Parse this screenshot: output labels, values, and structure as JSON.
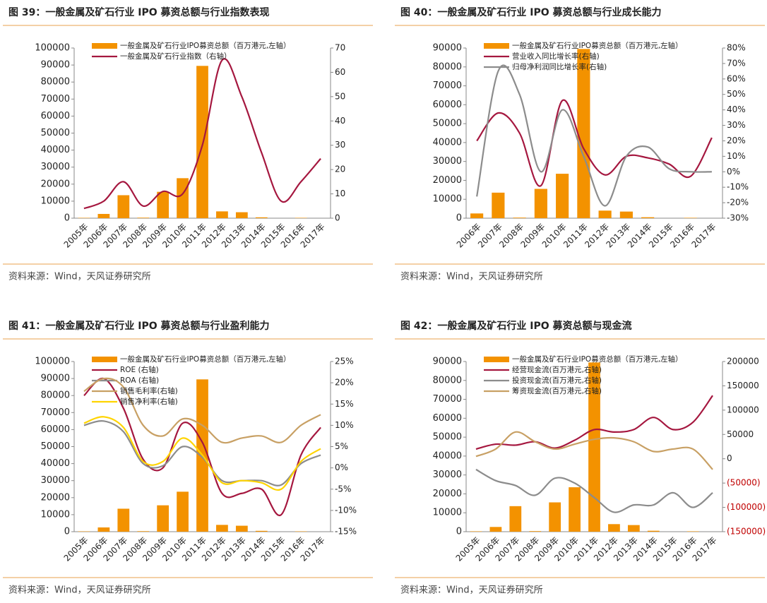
{
  "chart_data": [
    {
      "type": "combo",
      "title": "图 39：一般金属及矿石行业 IPO 募资总额与行业指数表现",
      "source": "资料来源：Wind，天风证券研究所",
      "categories": [
        "2005年",
        "2006年",
        "2007年",
        "2008年",
        "2009年",
        "2010年",
        "2011年",
        "2012年",
        "2013年",
        "2014年",
        "2015年",
        "2016年",
        "2017年"
      ],
      "series": [
        {
          "name": "一般金属及矿石行业IPO募资总额（百万港元,左轴）",
          "color": "#f39200",
          "values": [
            200,
            2500,
            13500,
            300,
            15500,
            23500,
            89500,
            4000,
            3500,
            500,
            0,
            200,
            0
          ]
        },
        {
          "name": "一般金属及矿石行业指数（右轴）",
          "color": "#a5173f",
          "axis": "y2",
          "values": [
            4,
            7,
            15,
            5,
            11,
            10,
            30,
            65,
            50,
            27,
            7,
            15,
            24.5
          ]
        }
      ],
      "ylim": [
        0,
        100000
      ],
      "yticks": [
        0,
        10000,
        20000,
        30000,
        40000,
        50000,
        60000,
        70000,
        80000,
        90000,
        100000
      ],
      "y2lim": [
        0,
        70
      ],
      "y2ticks": [
        0,
        10,
        20,
        30,
        40,
        50,
        60,
        70
      ]
    },
    {
      "type": "combo",
      "title": "图 40：一般金属及矿石行业 IPO 募资总额与行业成长能力",
      "source": "资料来源：Wind，天风证券研究所",
      "categories": [
        "2006年",
        "2007年",
        "2008年",
        "2009年",
        "2010年",
        "2011年",
        "2012年",
        "2013年",
        "2014年",
        "2015年",
        "2016年",
        "2017年"
      ],
      "series": [
        {
          "name": "一般金属及矿石行业IPO募资总额（百万港元,左轴）",
          "color": "#f39200",
          "values": [
            2500,
            13500,
            300,
            15500,
            23500,
            89500,
            4000,
            3500,
            500,
            0,
            200,
            0
          ]
        },
        {
          "name": "营业收入同比增长率(右轴)",
          "color": "#a5173f",
          "axis": "y2",
          "values": [
            20,
            38,
            25,
            -9,
            46,
            15,
            -2,
            10,
            9,
            5,
            -3,
            22
          ]
        },
        {
          "name": "归母净利润同比增长率(右轴)",
          "color": "#8c8c8c",
          "axis": "y2",
          "values": [
            -16,
            65,
            50,
            0,
            40,
            10,
            -22,
            10,
            16,
            2,
            0,
            0
          ]
        }
      ],
      "ylim": [
        0,
        90000
      ],
      "yticks": [
        0,
        10000,
        20000,
        30000,
        40000,
        50000,
        60000,
        70000,
        80000,
        90000
      ],
      "y2lim": [
        -30,
        80
      ],
      "y2ticks": [
        {
          "value": -30,
          "label": "-30%"
        },
        {
          "value": -20,
          "label": "-20%"
        },
        {
          "value": -10,
          "label": "-10%"
        },
        {
          "value": 0,
          "label": "0%"
        },
        {
          "value": 10,
          "label": "10%"
        },
        {
          "value": 20,
          "label": "20%"
        },
        {
          "value": 30,
          "label": "30%"
        },
        {
          "value": 40,
          "label": "40%"
        },
        {
          "value": 50,
          "label": "50%"
        },
        {
          "value": 60,
          "label": "60%"
        },
        {
          "value": 70,
          "label": "70%"
        },
        {
          "value": 80,
          "label": "80%"
        }
      ]
    },
    {
      "type": "combo",
      "title": "图 41：一般金属及矿石行业 IPO 募资总额与行业盈利能力",
      "source": "资料来源：Wind，天风证券研究所",
      "categories": [
        "2005年",
        "2006年",
        "2007年",
        "2008年",
        "2009年",
        "2010年",
        "2011年",
        "2012年",
        "2013年",
        "2014年",
        "2015年",
        "2016年",
        "2017年"
      ],
      "series": [
        {
          "name": "一般金属及矿石行业IPO募资总额（百万港元,左轴）",
          "color": "#f39200",
          "values": [
            200,
            2500,
            13500,
            300,
            15500,
            23500,
            89500,
            4000,
            3500,
            500,
            0,
            200,
            0
          ]
        },
        {
          "name": "ROE (右轴)",
          "color": "#a5173f",
          "axis": "y2",
          "values": [
            17,
            21,
            14,
            2,
            0,
            10.5,
            6,
            -6,
            -6,
            -5,
            -11,
            3,
            9.5
          ]
        },
        {
          "name": "ROA (右轴)",
          "color": "#8c8c8c",
          "axis": "y2",
          "values": [
            10,
            11,
            8.5,
            1,
            0.5,
            5,
            2.5,
            -3,
            -3,
            -3,
            -4,
            1,
            3
          ]
        },
        {
          "name": "销售毛利率(右轴)",
          "color": "#c8a064",
          "axis": "y2",
          "values": [
            18,
            21,
            19,
            10,
            7.5,
            11.5,
            10,
            6,
            7,
            7.5,
            6,
            10,
            12.5
          ]
        },
        {
          "name": "销售净利率(右轴)",
          "color": "#ffd400",
          "axis": "y2",
          "values": [
            10.5,
            12,
            9.5,
            1.5,
            1.5,
            7,
            3,
            -3.5,
            -3,
            -3.5,
            -5,
            1.5,
            4.5
          ]
        }
      ],
      "ylim": [
        0,
        100000
      ],
      "yticks": [
        0,
        10000,
        20000,
        30000,
        40000,
        50000,
        60000,
        70000,
        80000,
        90000,
        100000
      ],
      "y2lim": [
        -15,
        25
      ],
      "y2ticks": [
        {
          "value": -15,
          "label": "-15%"
        },
        {
          "value": -10,
          "label": "-10%"
        },
        {
          "value": -5,
          "label": "-5%"
        },
        {
          "value": 0,
          "label": "0%"
        },
        {
          "value": 5,
          "label": "5%"
        },
        {
          "value": 10,
          "label": "10%"
        },
        {
          "value": 15,
          "label": "15%"
        },
        {
          "value": 20,
          "label": "20%"
        },
        {
          "value": 25,
          "label": "25%"
        }
      ]
    },
    {
      "type": "combo",
      "title": "图 42：一般金属及矿石行业 IPO 募资总额与现金流",
      "source": "资料来源：Wind，天风证券研究所",
      "categories": [
        "2005年",
        "2006年",
        "2007年",
        "2008年",
        "2009年",
        "2010年",
        "2011年",
        "2012年",
        "2013年",
        "2014年",
        "2015年",
        "2016年",
        "2017年"
      ],
      "series": [
        {
          "name": "一般金属及矿石行业IPO募资总额（百万港元,左轴）",
          "color": "#f39200",
          "values": [
            200,
            2500,
            13500,
            300,
            15500,
            23500,
            89500,
            4000,
            3500,
            500,
            0,
            200,
            0
          ]
        },
        {
          "name": "经营现金流(百万港元,右轴)",
          "color": "#a5173f",
          "axis": "y2",
          "values": [
            20000,
            30000,
            28000,
            35000,
            22000,
            38000,
            60000,
            55000,
            60000,
            85000,
            60000,
            75000,
            130000
          ]
        },
        {
          "name": "投资现金流(百万港元,右轴)",
          "color": "#8c8c8c",
          "axis": "y2",
          "values": [
            -22000,
            -45000,
            -55000,
            -75000,
            -40000,
            -50000,
            -80000,
            -110000,
            -95000,
            -95000,
            -70000,
            -100000,
            -70000
          ]
        },
        {
          "name": "筹资现金流(百万港元,右轴)",
          "color": "#c8a064",
          "axis": "y2",
          "values": [
            5000,
            20000,
            55000,
            35000,
            20000,
            30000,
            40000,
            43000,
            35000,
            15000,
            20000,
            20000,
            -22000
          ]
        }
      ],
      "ylim": [
        0,
        90000
      ],
      "yticks": [
        0,
        10000,
        20000,
        30000,
        40000,
        50000,
        60000,
        70000,
        80000,
        90000
      ],
      "y2lim": [
        -150000,
        200000
      ],
      "y2ticks": [
        {
          "value": -150000,
          "label": "(150000)"
        },
        {
          "value": -100000,
          "label": "(100000)"
        },
        {
          "value": -50000,
          "label": "(50000)"
        },
        0,
        50000,
        100000,
        150000,
        200000
      ]
    }
  ]
}
